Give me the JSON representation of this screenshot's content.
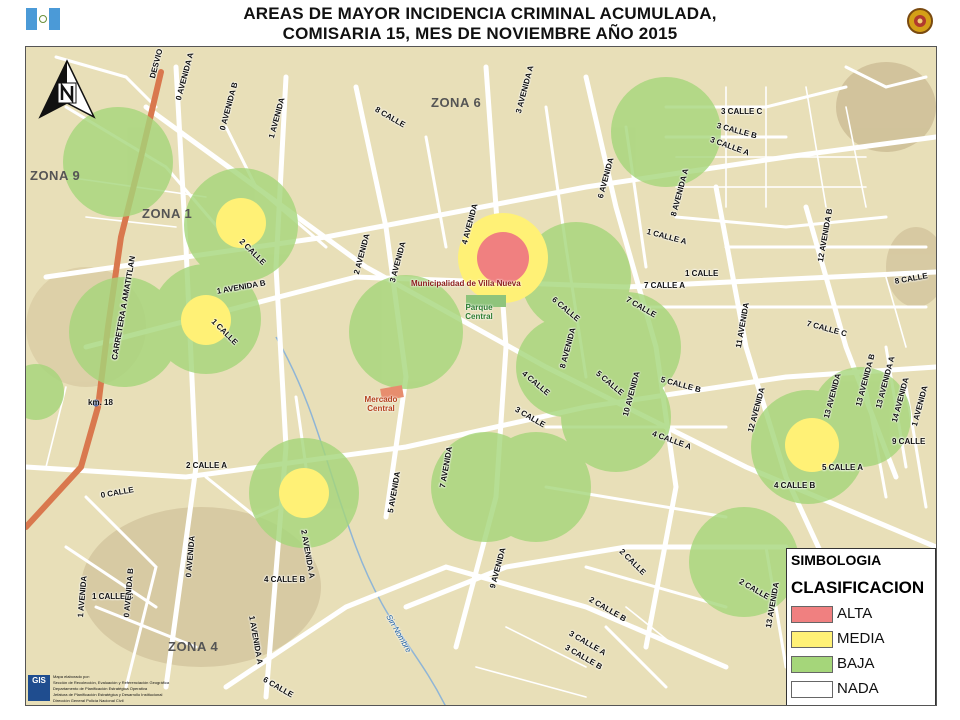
{
  "header": {
    "title_line1": "AREAS DE MAYOR INCIDENCIA CRIMINAL ACUMULADA,",
    "title_line2": "COMISARIA 15, MES DE NOVIEMBRE AÑO 2015",
    "left_logo": "guatemala-flag-icon",
    "right_logo": "police-emblem-icon"
  },
  "map": {
    "zones": [
      "ZONA 6",
      "ZONA 9",
      "ZONA 1",
      "ZONA 4"
    ],
    "pois": {
      "municipalidad": "Municipalidad de Villa Nueva",
      "parque": "Parque Central",
      "mercado": "Mercado Central",
      "km": "km. 18"
    },
    "river": "Sin Nombre",
    "streets": [
      "DESVIO",
      "0 AVENIDA A",
      "0 AVENIDA B",
      "1 AVENIDA",
      "8 CALLE",
      "3 AVENIDA A",
      "2 CALLE",
      "2 AVENIDA",
      "3 AVENIDA",
      "4 AVENIDA",
      "1 AVENIDA B",
      "1 CALLE",
      "CARRETERA A AMATITLAN",
      "3 CALLE C",
      "3 CALLE B",
      "3 CALLE A",
      "6 AVENIDA",
      "8 AVENIDA A",
      "1 CALLE A",
      "1 CALLE",
      "7 CALLE A",
      "7 CALLE",
      "6 CALLE",
      "8 AVENIDA",
      "5 CALLE",
      "4 CALLE",
      "3 CALLE",
      "10 AVENIDA",
      "5 CALLE B",
      "4 CALLE A",
      "12 AVENIDA B",
      "11 AVENIDA",
      "7 CALLE C",
      "8 CALLE",
      "12 AVENIDA",
      "13 AVENIDA",
      "13 AVENIDA B",
      "13 AVENIDA A",
      "14 AVENIDA",
      "1 AVENIDA",
      "9 CALLE",
      "5 CALLE A",
      "4 CALLE B",
      "2 CALLE A",
      "0 CALLE",
      "0 AVENIDA",
      "1 AVENIDA",
      "1 CALLE C",
      "5 AVENIDA",
      "7 AVENIDA",
      "2 AVENIDA A",
      "4 CALLE B",
      "9 AVENIDA",
      "2 CALLE",
      "2 CALLE B",
      "3 CALLE A",
      "3 CALLE B",
      "1 AVENIDA A",
      "6 CALLE",
      "0 AVENIDA B",
      "13 AVENIDA",
      "2 CALLE"
    ]
  },
  "legend": {
    "title": "SIMBOLOGIA",
    "subtitle": "CLASIFICACION",
    "items": [
      {
        "label": "ALTA",
        "color": "#f08080"
      },
      {
        "label": "MEDIA",
        "color": "#fff176"
      },
      {
        "label": "BAJA",
        "color": "#a5d67a"
      },
      {
        "label": "NADA",
        "color": "#ffffff"
      }
    ]
  },
  "credits": {
    "logo": "GIS",
    "lines": [
      "Mapa elaborado por:",
      "Sección de Recolección, Evaluación y Referenciación Geográfica",
      "Departamento de Planificación Estratégica Operativa",
      "Jefatura de Planificación Estratégica y Desarrollo Institucional",
      "Dirección General Policía Nacional Civil"
    ]
  },
  "colors": {
    "map_background": "#e8dfb8",
    "road": "#ffffff",
    "highway": "#d9784e",
    "river": "#8fb5d6",
    "alta": "#f08080",
    "media": "#fff176",
    "baja": "#a5d67a"
  }
}
